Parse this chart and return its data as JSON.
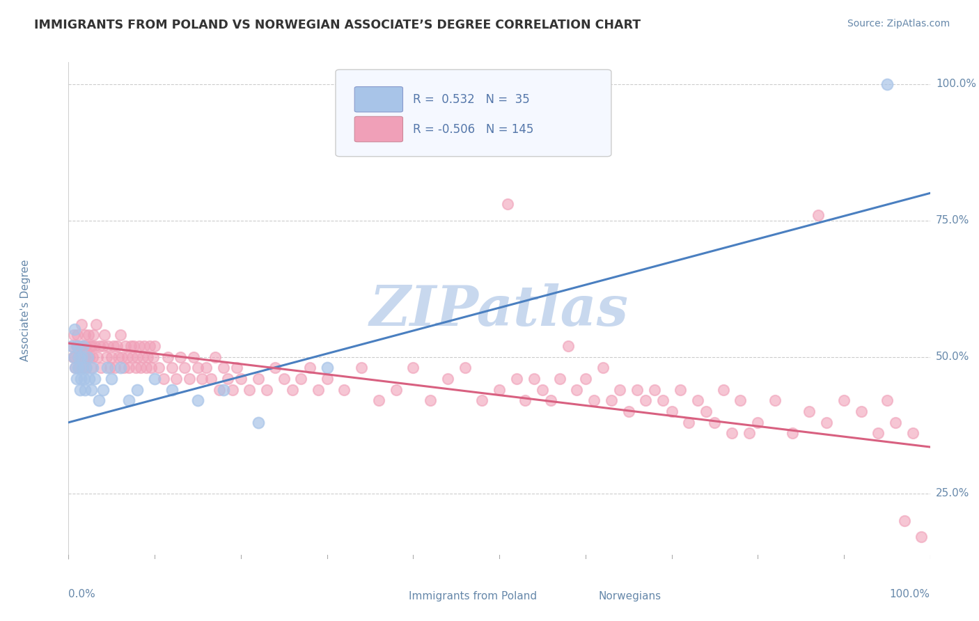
{
  "title": "IMMIGRANTS FROM POLAND VS NORWEGIAN ASSOCIATE’S DEGREE CORRELATION CHART",
  "source_text": "Source: ZipAtlas.com",
  "ylabel": "Associate's Degree",
  "xlim": [
    0.0,
    1.0
  ],
  "ylim": [
    0.13,
    1.04
  ],
  "ytick_labels": [
    "25.0%",
    "50.0%",
    "75.0%",
    "100.0%"
  ],
  "ytick_positions": [
    0.25,
    0.5,
    0.75,
    1.0
  ],
  "blue_series": {
    "R": 0.532,
    "N": 35,
    "scatter_color": "#a8c4e8",
    "line_color": "#4a7fc0",
    "scatter_x": [
      0.004,
      0.006,
      0.007,
      0.008,
      0.009,
      0.01,
      0.011,
      0.012,
      0.013,
      0.014,
      0.015,
      0.016,
      0.017,
      0.018,
      0.019,
      0.02,
      0.022,
      0.024,
      0.026,
      0.028,
      0.03,
      0.035,
      0.04,
      0.045,
      0.05,
      0.06,
      0.07,
      0.08,
      0.1,
      0.12,
      0.15,
      0.18,
      0.22,
      0.3,
      0.95
    ],
    "scatter_y": [
      0.52,
      0.5,
      0.55,
      0.48,
      0.46,
      0.52,
      0.48,
      0.5,
      0.44,
      0.46,
      0.5,
      0.48,
      0.52,
      0.46,
      0.44,
      0.48,
      0.5,
      0.46,
      0.44,
      0.48,
      0.46,
      0.42,
      0.44,
      0.48,
      0.46,
      0.48,
      0.42,
      0.44,
      0.46,
      0.44,
      0.42,
      0.44,
      0.38,
      0.48,
      1.0
    ],
    "trend_x0": 0.0,
    "trend_x1": 1.0,
    "trend_y0": 0.38,
    "trend_y1": 0.8
  },
  "pink_series": {
    "R": -0.506,
    "N": 145,
    "scatter_color": "#f0a0b8",
    "line_color": "#d86080",
    "scatter_x": [
      0.004,
      0.005,
      0.006,
      0.007,
      0.008,
      0.009,
      0.01,
      0.011,
      0.012,
      0.013,
      0.014,
      0.015,
      0.016,
      0.017,
      0.018,
      0.019,
      0.02,
      0.021,
      0.022,
      0.023,
      0.024,
      0.025,
      0.026,
      0.027,
      0.028,
      0.029,
      0.03,
      0.032,
      0.034,
      0.036,
      0.038,
      0.04,
      0.042,
      0.044,
      0.046,
      0.048,
      0.05,
      0.052,
      0.054,
      0.056,
      0.058,
      0.06,
      0.062,
      0.064,
      0.066,
      0.068,
      0.07,
      0.072,
      0.074,
      0.076,
      0.078,
      0.08,
      0.082,
      0.084,
      0.086,
      0.088,
      0.09,
      0.092,
      0.094,
      0.096,
      0.098,
      0.1,
      0.105,
      0.11,
      0.115,
      0.12,
      0.125,
      0.13,
      0.135,
      0.14,
      0.145,
      0.15,
      0.155,
      0.16,
      0.165,
      0.17,
      0.175,
      0.18,
      0.185,
      0.19,
      0.195,
      0.2,
      0.21,
      0.22,
      0.23,
      0.24,
      0.25,
      0.26,
      0.27,
      0.28,
      0.29,
      0.3,
      0.32,
      0.34,
      0.36,
      0.38,
      0.4,
      0.42,
      0.44,
      0.46,
      0.48,
      0.5,
      0.51,
      0.52,
      0.53,
      0.54,
      0.55,
      0.56,
      0.57,
      0.58,
      0.59,
      0.6,
      0.61,
      0.62,
      0.63,
      0.64,
      0.65,
      0.66,
      0.67,
      0.68,
      0.69,
      0.7,
      0.71,
      0.72,
      0.73,
      0.74,
      0.75,
      0.76,
      0.77,
      0.78,
      0.79,
      0.8,
      0.82,
      0.84,
      0.86,
      0.87,
      0.88,
      0.9,
      0.92,
      0.94,
      0.95,
      0.96,
      0.97,
      0.98,
      0.99
    ],
    "scatter_y": [
      0.52,
      0.5,
      0.54,
      0.5,
      0.48,
      0.52,
      0.54,
      0.5,
      0.48,
      0.52,
      0.5,
      0.56,
      0.52,
      0.48,
      0.5,
      0.54,
      0.52,
      0.48,
      0.5,
      0.54,
      0.5,
      0.52,
      0.48,
      0.52,
      0.5,
      0.54,
      0.52,
      0.56,
      0.5,
      0.52,
      0.48,
      0.52,
      0.54,
      0.5,
      0.52,
      0.48,
      0.5,
      0.52,
      0.48,
      0.52,
      0.5,
      0.54,
      0.5,
      0.48,
      0.52,
      0.5,
      0.48,
      0.52,
      0.5,
      0.52,
      0.48,
      0.5,
      0.52,
      0.48,
      0.5,
      0.52,
      0.48,
      0.5,
      0.52,
      0.48,
      0.5,
      0.52,
      0.48,
      0.46,
      0.5,
      0.48,
      0.46,
      0.5,
      0.48,
      0.46,
      0.5,
      0.48,
      0.46,
      0.48,
      0.46,
      0.5,
      0.44,
      0.48,
      0.46,
      0.44,
      0.48,
      0.46,
      0.44,
      0.46,
      0.44,
      0.48,
      0.46,
      0.44,
      0.46,
      0.48,
      0.44,
      0.46,
      0.44,
      0.48,
      0.42,
      0.44,
      0.48,
      0.42,
      0.46,
      0.48,
      0.42,
      0.44,
      0.78,
      0.46,
      0.42,
      0.46,
      0.44,
      0.42,
      0.46,
      0.52,
      0.44,
      0.46,
      0.42,
      0.48,
      0.42,
      0.44,
      0.4,
      0.44,
      0.42,
      0.44,
      0.42,
      0.4,
      0.44,
      0.38,
      0.42,
      0.4,
      0.38,
      0.44,
      0.36,
      0.42,
      0.36,
      0.38,
      0.42,
      0.36,
      0.4,
      0.76,
      0.38,
      0.42,
      0.4,
      0.36,
      0.42,
      0.38,
      0.2,
      0.36,
      0.17
    ],
    "trend_x0": 0.0,
    "trend_x1": 1.0,
    "trend_y0": 0.525,
    "trend_y1": 0.335
  },
  "watermark": "ZIPatlas",
  "watermark_color": "#c8d8ee",
  "background_color": "#ffffff",
  "grid_color": "#cccccc",
  "title_color": "#333333",
  "axis_label_color": "#6688aa",
  "tick_color": "#6688aa",
  "legend_text_color": "#5577aa"
}
